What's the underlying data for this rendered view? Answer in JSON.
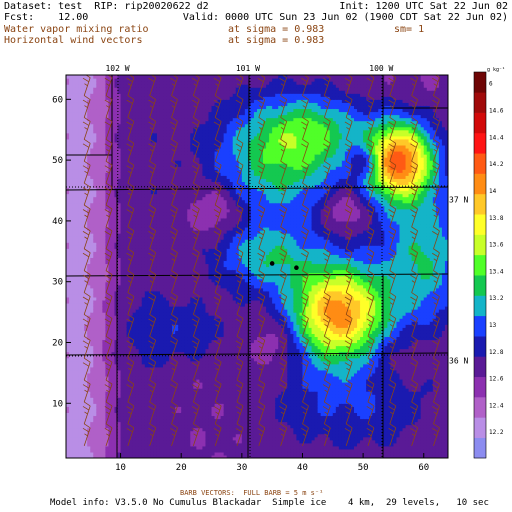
{
  "header": {
    "dataset_line": "Dataset: test  RIP: rip20020622 d2",
    "init_line": "Init: 1200 UTC Sat 22 Jun 02",
    "fcst_line": "Fcst:    12.00",
    "valid_line": "Valid: 0000 UTC Sun 23 Jun 02 (1900 CDT Sat 22 Jun 02)",
    "field1_name": "Water vapor mixing ratio",
    "field1_level": "at sigma = 0.983",
    "field1_smooth": "sm= 1",
    "field2_name": "Horizontal wind vectors",
    "field2_level": "at sigma = 0.983"
  },
  "footer": {
    "barb_note": "BARB VECTORS:  FULL BARB = 5 m s⁻¹",
    "model_info": "Model info: V3.5.0 No Cumulus Blackadar  Simple ice    4 km,  29 levels,   10 sec"
  },
  "colors": {
    "map_line": "#000000",
    "barb": "#8b4513",
    "header_accent": "#8b4513"
  },
  "chart_data": {
    "type": "heatmap",
    "units": "g kg⁻¹",
    "x_ticks": [
      10,
      20,
      30,
      40,
      50,
      60
    ],
    "y_ticks": [
      10,
      20,
      30,
      40,
      50,
      60
    ],
    "xlim": [
      1,
      64
    ],
    "ylim": [
      1,
      64
    ],
    "lon_labels": [
      "102 W",
      "101 W",
      "100 W"
    ],
    "lon_positions": [
      9.5,
      31,
      53
    ],
    "lat_labels": [
      "37 N",
      "36 N"
    ],
    "lat_positions": [
      43.5,
      17
    ],
    "colorbar": {
      "levels": [
        12,
        12.2,
        12.4,
        12.6,
        12.8,
        13,
        13.2,
        13.4,
        13.6,
        13.8,
        14,
        14.2,
        14.4,
        14.6
      ],
      "labels": [
        "12.2",
        "12.4",
        "12.6",
        "12.8",
        "13",
        "13.2",
        "13.4",
        "13.6",
        "13.8",
        "14",
        "14.2",
        "14.4",
        "14.6",
        "6"
      ],
      "colors": [
        "#8c8cf0",
        "#b98ee6",
        "#b060c8",
        "#8c30b0",
        "#5a1a96",
        "#1a1ab0",
        "#1a40ff",
        "#14b4c8",
        "#14c850",
        "#50ff28",
        "#c8ff28",
        "#ffff28",
        "#ffc828",
        "#ff8c14",
        "#ff5a14",
        "#ff1414",
        "#d20a0a",
        "#a00a0a",
        "#6e0505"
      ]
    },
    "base_value": 12.3,
    "features": [
      {
        "kind": "ridge_x",
        "x": 4,
        "width": 5,
        "amp": -0.6
      },
      {
        "kind": "ridge_x",
        "x": 10,
        "width": 5,
        "amp": 0.3
      },
      {
        "kind": "blob",
        "x": 46,
        "y": 25,
        "sx": 5.5,
        "sy": 5.5,
        "amp": 1.9
      },
      {
        "kind": "blob",
        "x": 56,
        "y": 50,
        "sx": 4,
        "sy": 4.5,
        "amp": 2.0
      },
      {
        "kind": "blob",
        "x": 36,
        "y": 50,
        "sx": 8,
        "sy": 7,
        "amp": 0.9
      },
      {
        "kind": "blob",
        "x": 42,
        "y": 55,
        "sx": 6,
        "sy": 4,
        "amp": 0.6
      },
      {
        "kind": "blob",
        "x": 34,
        "y": 34,
        "sx": 6,
        "sy": 4,
        "amp": 0.7
      },
      {
        "kind": "blob",
        "x": 60,
        "y": 34,
        "sx": 5,
        "sy": 8,
        "amp": 0.8
      },
      {
        "kind": "blob",
        "x": 48,
        "y": 10,
        "sx": 10,
        "sy": 6,
        "amp": 0.4
      },
      {
        "kind": "blob",
        "x": 20,
        "y": 22,
        "sx": 6,
        "sy": 4,
        "amp": 0.3
      },
      {
        "kind": "blob",
        "x": 50,
        "y": 50,
        "sx": 2,
        "sy": 2,
        "amp": -0.6
      },
      {
        "kind": "blob",
        "x": 47,
        "y": 42,
        "sx": 2.5,
        "sy": 2.5,
        "amp": -0.4
      },
      {
        "kind": "blob",
        "x": 26,
        "y": 42,
        "sx": 3,
        "sy": 3,
        "amp": -0.4
      },
      {
        "kind": "blob",
        "x": 36,
        "y": 20,
        "sx": 3,
        "sy": 3,
        "amp": -0.3
      },
      {
        "kind": "blob",
        "x": 56,
        "y": 18,
        "sx": 4,
        "sy": 3,
        "amp": -0.2
      }
    ],
    "points": [
      {
        "x": 35,
        "y": 33
      },
      {
        "x": 39,
        "y": 32.3
      }
    ]
  }
}
